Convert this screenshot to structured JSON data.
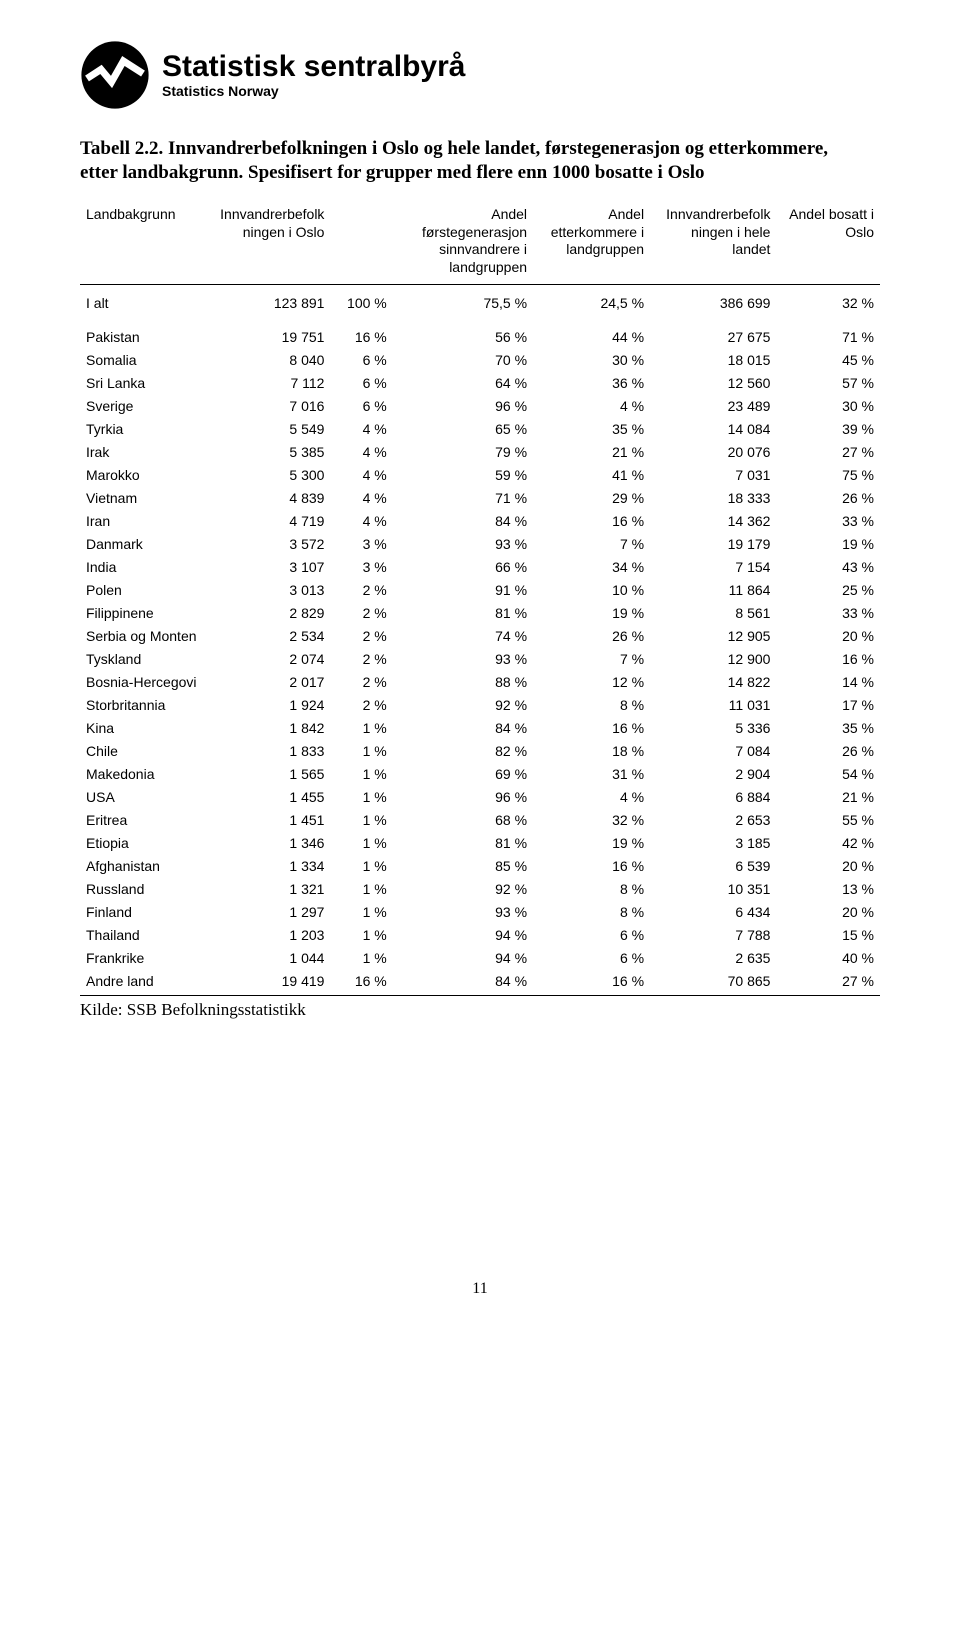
{
  "logo": {
    "main": "Statistisk sentralbyrå",
    "sub": "Statistics Norway"
  },
  "title_line1": "Tabell 2.2. Innvandrerbefolkningen i Oslo og hele landet, førstegenerasjon og etterkommere,",
  "title_line2": "etter landbakgrunn. Spesifisert for grupper med flere enn 1000 bosatte i Oslo",
  "columns": {
    "c1": "Landbakgrunn",
    "c2": "Innvandrerbefolk\nningen i Oslo",
    "c3": "",
    "c4": "Andel\nførstegenerasjon\nsinnvandrere i\nlandgruppen",
    "c5": "Andel\netterkommere i\nlandgruppen",
    "c6": "Innvandrerbefolk\nningen i hele\nlandet",
    "c7": "Andel bosatt i\nOslo"
  },
  "total": {
    "label": "I alt",
    "pop_oslo": "123 891",
    "share": "100 %",
    "firstgen": "75,5 %",
    "desc": "24,5 %",
    "pop_country": "386 699",
    "share_oslo": "32 %"
  },
  "rows": [
    {
      "label": "Pakistan",
      "pop_oslo": "19 751",
      "share": "16 %",
      "firstgen": "56 %",
      "desc": "44 %",
      "pop_country": "27 675",
      "share_oslo": "71 %"
    },
    {
      "label": "Somalia",
      "pop_oslo": "8 040",
      "share": "6 %",
      "firstgen": "70 %",
      "desc": "30 %",
      "pop_country": "18 015",
      "share_oslo": "45 %"
    },
    {
      "label": "Sri Lanka",
      "pop_oslo": "7 112",
      "share": "6 %",
      "firstgen": "64 %",
      "desc": "36 %",
      "pop_country": "12 560",
      "share_oslo": "57 %"
    },
    {
      "label": "Sverige",
      "pop_oslo": "7 016",
      "share": "6 %",
      "firstgen": "96 %",
      "desc": "4 %",
      "pop_country": "23 489",
      "share_oslo": "30 %"
    },
    {
      "label": "Tyrkia",
      "pop_oslo": "5 549",
      "share": "4 %",
      "firstgen": "65 %",
      "desc": "35 %",
      "pop_country": "14 084",
      "share_oslo": "39 %"
    },
    {
      "label": "Irak",
      "pop_oslo": "5 385",
      "share": "4 %",
      "firstgen": "79 %",
      "desc": "21 %",
      "pop_country": "20 076",
      "share_oslo": "27 %"
    },
    {
      "label": "Marokko",
      "pop_oslo": "5 300",
      "share": "4 %",
      "firstgen": "59 %",
      "desc": "41 %",
      "pop_country": "7 031",
      "share_oslo": "75 %"
    },
    {
      "label": "Vietnam",
      "pop_oslo": "4 839",
      "share": "4 %",
      "firstgen": "71 %",
      "desc": "29 %",
      "pop_country": "18 333",
      "share_oslo": "26 %"
    },
    {
      "label": "Iran",
      "pop_oslo": "4 719",
      "share": "4 %",
      "firstgen": "84 %",
      "desc": "16 %",
      "pop_country": "14 362",
      "share_oslo": "33 %"
    },
    {
      "label": "Danmark",
      "pop_oslo": "3 572",
      "share": "3 %",
      "firstgen": "93 %",
      "desc": "7 %",
      "pop_country": "19 179",
      "share_oslo": "19 %"
    },
    {
      "label": "India",
      "pop_oslo": "3 107",
      "share": "3 %",
      "firstgen": "66 %",
      "desc": "34 %",
      "pop_country": "7 154",
      "share_oslo": "43 %"
    },
    {
      "label": "Polen",
      "pop_oslo": "3 013",
      "share": "2 %",
      "firstgen": "91 %",
      "desc": "10 %",
      "pop_country": "11 864",
      "share_oslo": "25 %"
    },
    {
      "label": "Filippinene",
      "pop_oslo": "2 829",
      "share": "2 %",
      "firstgen": "81 %",
      "desc": "19 %",
      "pop_country": "8 561",
      "share_oslo": "33 %"
    },
    {
      "label": "Serbia og Monten",
      "pop_oslo": "2 534",
      "share": "2 %",
      "firstgen": "74 %",
      "desc": "26 %",
      "pop_country": "12 905",
      "share_oslo": "20 %"
    },
    {
      "label": "Tyskland",
      "pop_oslo": "2 074",
      "share": "2 %",
      "firstgen": "93 %",
      "desc": "7 %",
      "pop_country": "12 900",
      "share_oslo": "16 %"
    },
    {
      "label": "Bosnia-Hercegovi",
      "pop_oslo": "2 017",
      "share": "2 %",
      "firstgen": "88 %",
      "desc": "12 %",
      "pop_country": "14 822",
      "share_oslo": "14 %"
    },
    {
      "label": "Storbritannia",
      "pop_oslo": "1 924",
      "share": "2 %",
      "firstgen": "92 %",
      "desc": "8 %",
      "pop_country": "11 031",
      "share_oslo": "17 %"
    },
    {
      "label": "Kina",
      "pop_oslo": "1 842",
      "share": "1 %",
      "firstgen": "84 %",
      "desc": "16 %",
      "pop_country": "5 336",
      "share_oslo": "35 %"
    },
    {
      "label": "Chile",
      "pop_oslo": "1 833",
      "share": "1 %",
      "firstgen": "82 %",
      "desc": "18 %",
      "pop_country": "7 084",
      "share_oslo": "26 %"
    },
    {
      "label": "Makedonia",
      "pop_oslo": "1 565",
      "share": "1 %",
      "firstgen": "69 %",
      "desc": "31 %",
      "pop_country": "2 904",
      "share_oslo": "54 %"
    },
    {
      "label": "USA",
      "pop_oslo": "1 455",
      "share": "1 %",
      "firstgen": "96 %",
      "desc": "4 %",
      "pop_country": "6 884",
      "share_oslo": "21 %"
    },
    {
      "label": "Eritrea",
      "pop_oslo": "1 451",
      "share": "1 %",
      "firstgen": "68 %",
      "desc": "32 %",
      "pop_country": "2 653",
      "share_oslo": "55 %"
    },
    {
      "label": "Etiopia",
      "pop_oslo": "1 346",
      "share": "1 %",
      "firstgen": "81 %",
      "desc": "19 %",
      "pop_country": "3 185",
      "share_oslo": "42 %"
    },
    {
      "label": "Afghanistan",
      "pop_oslo": "1 334",
      "share": "1 %",
      "firstgen": "85 %",
      "desc": "16 %",
      "pop_country": "6 539",
      "share_oslo": "20 %"
    },
    {
      "label": "Russland",
      "pop_oslo": "1 321",
      "share": "1 %",
      "firstgen": "92 %",
      "desc": "8 %",
      "pop_country": "10 351",
      "share_oslo": "13 %"
    },
    {
      "label": "Finland",
      "pop_oslo": "1 297",
      "share": "1 %",
      "firstgen": "93 %",
      "desc": "8 %",
      "pop_country": "6 434",
      "share_oslo": "20 %"
    },
    {
      "label": "Thailand",
      "pop_oslo": "1 203",
      "share": "1 %",
      "firstgen": "94 %",
      "desc": "6 %",
      "pop_country": "7 788",
      "share_oslo": "15 %"
    },
    {
      "label": "Frankrike",
      "pop_oslo": "1 044",
      "share": "1 %",
      "firstgen": "94 %",
      "desc": "6 %",
      "pop_country": "2 635",
      "share_oslo": "40 %"
    },
    {
      "label": "Andre land",
      "pop_oslo": "19 419",
      "share": "16 %",
      "firstgen": "84 %",
      "desc": "16 %",
      "pop_country": "70 865",
      "share_oslo": "27 %"
    }
  ],
  "source": "Kilde: SSB Befolkningsstatistikk",
  "page_number": "11"
}
